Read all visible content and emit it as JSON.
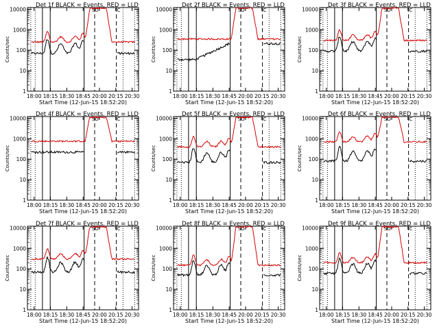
{
  "colors": {
    "events": "#000000",
    "lld": "#d40000",
    "axes": "#000000",
    "background": "#ffffff"
  },
  "common": {
    "xlabel": "Start Time (12-Jun-15 18:52:20)",
    "ylabel": "Counts/sec",
    "xticks": [
      "18:00",
      "18:15",
      "18:30",
      "18:45",
      "20:00",
      "20:15",
      "20:30"
    ],
    "yticks": [
      "1",
      "10",
      "100",
      "1000",
      "10000"
    ],
    "ylim": [
      1,
      12000
    ],
    "markers": [
      "SO",
      "C"
    ]
  },
  "chart_data": [
    {
      "type": "line",
      "title": "Det 1f BLACK = Events, RED = LLD",
      "lld_base": 250,
      "events_base": 70,
      "profile": "flare",
      "series": [
        {
          "name": "Events",
          "color": "#000000"
        },
        {
          "name": "LLD",
          "color": "#d40000"
        }
      ]
    },
    {
      "type": "line",
      "title": "Det 2f BLACK = Events, RED = LLD",
      "lld_base": 350,
      "events_base": 35,
      "profile": "ramp",
      "series": [
        {
          "name": "Events",
          "color": "#000000"
        },
        {
          "name": "LLD",
          "color": "#d40000"
        }
      ]
    },
    {
      "type": "line",
      "title": "Det 3f BLACK = Events, RED = LLD",
      "lld_base": 300,
      "events_base": 90,
      "profile": "flare",
      "series": [
        {
          "name": "Events",
          "color": "#000000"
        },
        {
          "name": "LLD",
          "color": "#d40000"
        }
      ]
    },
    {
      "type": "line",
      "title": "Det 4f BLACK = Events, RED = LLD",
      "lld_base": 750,
      "events_base": 220,
      "profile": "flat",
      "series": [
        {
          "name": "Events",
          "color": "#000000"
        },
        {
          "name": "LLD",
          "color": "#d40000"
        }
      ]
    },
    {
      "type": "line",
      "title": "Det 5f BLACK = Events, RED = LLD",
      "lld_base": 400,
      "events_base": 70,
      "profile": "flare",
      "series": [
        {
          "name": "Events",
          "color": "#000000"
        },
        {
          "name": "LLD",
          "color": "#d40000"
        }
      ]
    },
    {
      "type": "line",
      "title": "Det 6f BLACK = Events, RED = LLD",
      "lld_base": 700,
      "events_base": 80,
      "profile": "flare",
      "series": [
        {
          "name": "Events",
          "color": "#000000"
        },
        {
          "name": "LLD",
          "color": "#d40000"
        }
      ]
    },
    {
      "type": "line",
      "title": "Det 7f BLACK = Events, RED = LLD",
      "lld_base": 300,
      "events_base": 70,
      "profile": "flare",
      "series": [
        {
          "name": "Events",
          "color": "#000000"
        },
        {
          "name": "LLD",
          "color": "#d40000"
        }
      ]
    },
    {
      "type": "line",
      "title": "Det 8f BLACK = Events, RED = LLD",
      "lld_base": 150,
      "events_base": 50,
      "profile": "flare",
      "series": [
        {
          "name": "Events",
          "color": "#000000"
        },
        {
          "name": "LLD",
          "color": "#d40000"
        }
      ]
    },
    {
      "type": "line",
      "title": "Det 9f BLACK = Events, RED = LLD",
      "lld_base": 200,
      "events_base": 60,
      "profile": "flare",
      "series": [
        {
          "name": "Events",
          "color": "#000000"
        },
        {
          "name": "LLD",
          "color": "#d40000"
        }
      ]
    }
  ]
}
